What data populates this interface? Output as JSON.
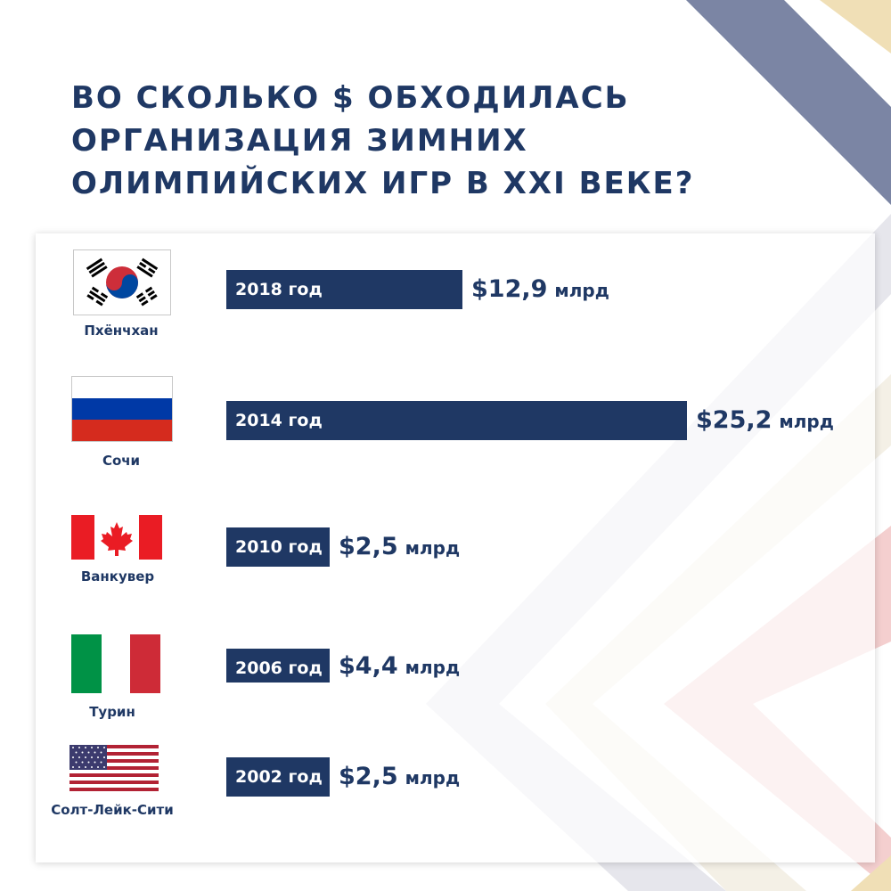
{
  "title": {
    "line1": "ВО СКОЛЬКО $ ОБХОДИЛАСЬ",
    "line2_pre": "ОРГАНИЗАЦИЯ ",
    "line2_emph": "ЗИМНИХ",
    "line3": "ОЛИМПИЙСКИХ ИГР В XXI ВЕКЕ?"
  },
  "colors": {
    "bar": "#1f3864",
    "text": "#1f3864",
    "stripe_navy": "#7b85a4",
    "stripe_gold": "#f0dfb6",
    "stripe_pink": "#f4cfcf",
    "stripe_gray": "#e6e6ec"
  },
  "chart_data": {
    "type": "bar",
    "orientation": "horizontal",
    "unit": "млрд",
    "categories": [
      "2018 год",
      "2014 год",
      "2010 год",
      "2006 год",
      "2002 год"
    ],
    "cities": [
      "Пхёнчхан",
      "Сочи",
      "Ванкувер",
      "Турин",
      "Солт-Лейк-Сити"
    ],
    "flags": [
      "south-korea-flag",
      "russia-flag",
      "canada-flag",
      "italy-flag",
      "usa-flag"
    ],
    "values": [
      12.9,
      25.2,
      2.5,
      4.4,
      2.5
    ],
    "value_labels": [
      "$12,9",
      "$25,2",
      "$2,5",
      "$4,4",
      "$2,5"
    ]
  }
}
